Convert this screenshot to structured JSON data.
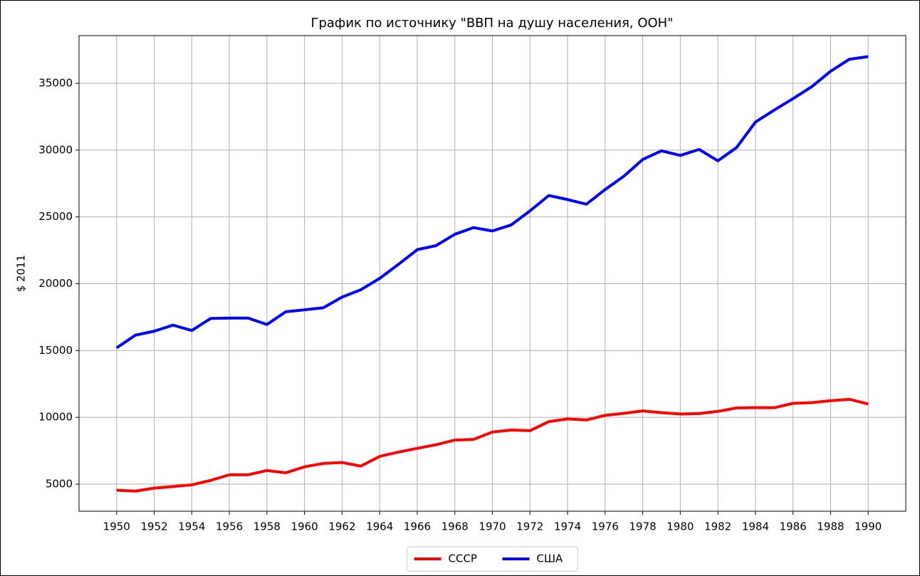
{
  "chart_data": {
    "type": "line",
    "title": "График по источнику \"ВВП на душу населения, ООН\"",
    "y_label": "$ 2011",
    "x": [
      1950,
      1951,
      1952,
      1953,
      1954,
      1955,
      1956,
      1957,
      1958,
      1959,
      1960,
      1961,
      1962,
      1963,
      1964,
      1965,
      1966,
      1967,
      1968,
      1969,
      1970,
      1971,
      1972,
      1973,
      1974,
      1975,
      1976,
      1977,
      1978,
      1979,
      1980,
      1981,
      1982,
      1983,
      1984,
      1985,
      1986,
      1987,
      1988,
      1989,
      1990
    ],
    "series": [
      {
        "name": "СССР",
        "color": "#ff0000",
        "values": [
          4550,
          4480,
          4700,
          4820,
          4950,
          5280,
          5700,
          5700,
          6020,
          5850,
          6300,
          6550,
          6620,
          6350,
          7080,
          7400,
          7680,
          7950,
          8300,
          8350,
          8900,
          9050,
          9000,
          9680,
          9880,
          9800,
          10150,
          10300,
          10480,
          10350,
          10250,
          10280,
          10450,
          10700,
          10730,
          10720,
          11050,
          11100,
          11250,
          11350,
          11000
        ]
      },
      {
        "name": "США",
        "color": "#0000ff",
        "values": [
          15200,
          16150,
          16450,
          16900,
          16500,
          17400,
          17430,
          17430,
          16950,
          17900,
          18050,
          18200,
          19000,
          19550,
          20400,
          21450,
          22550,
          22850,
          23700,
          24200,
          23950,
          24400,
          25450,
          26600,
          26300,
          25950,
          27050,
          28050,
          29300,
          29950,
          29600,
          30050,
          29200,
          30200,
          32100,
          33000,
          33850,
          34750,
          35900,
          36800,
          37000
        ]
      }
    ],
    "xlim": [
      1948,
      1992
    ],
    "xticks": [
      1950,
      1952,
      1954,
      1956,
      1958,
      1960,
      1962,
      1964,
      1966,
      1968,
      1970,
      1972,
      1974,
      1976,
      1978,
      1980,
      1982,
      1984,
      1986,
      1988,
      1990
    ],
    "ylim": [
      2975,
      38570
    ],
    "yticks": [
      5000,
      10000,
      15000,
      20000,
      25000,
      30000,
      35000
    ],
    "grid": true,
    "legend": "bottom"
  }
}
